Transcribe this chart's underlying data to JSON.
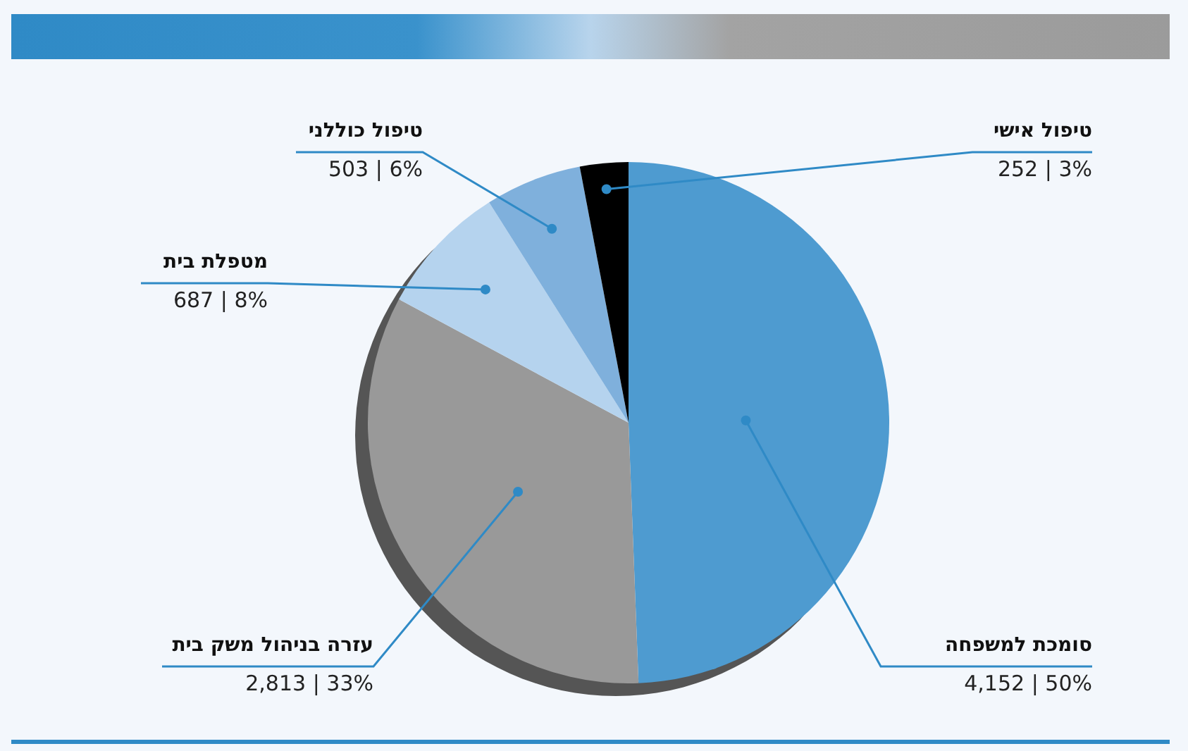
{
  "chart_data": {
    "type": "pie",
    "categories": [
      "סומכת למשפחה",
      "עזרה בניהול משק בית",
      "מטפלת בית",
      "טיפול כוללני",
      "טיפול אישי"
    ],
    "values": [
      4152,
      2813,
      687,
      503,
      252
    ],
    "colors": [
      "#4e9bd0",
      "#999999",
      "#b5d3ee",
      "#7fb0dc",
      "#000000"
    ],
    "value_labels": [
      "4,152 | 50%",
      "2,813 | 33%",
      "687 | 8%",
      "503 | 6%",
      "252 | 3%"
    ],
    "legend": false
  }
}
